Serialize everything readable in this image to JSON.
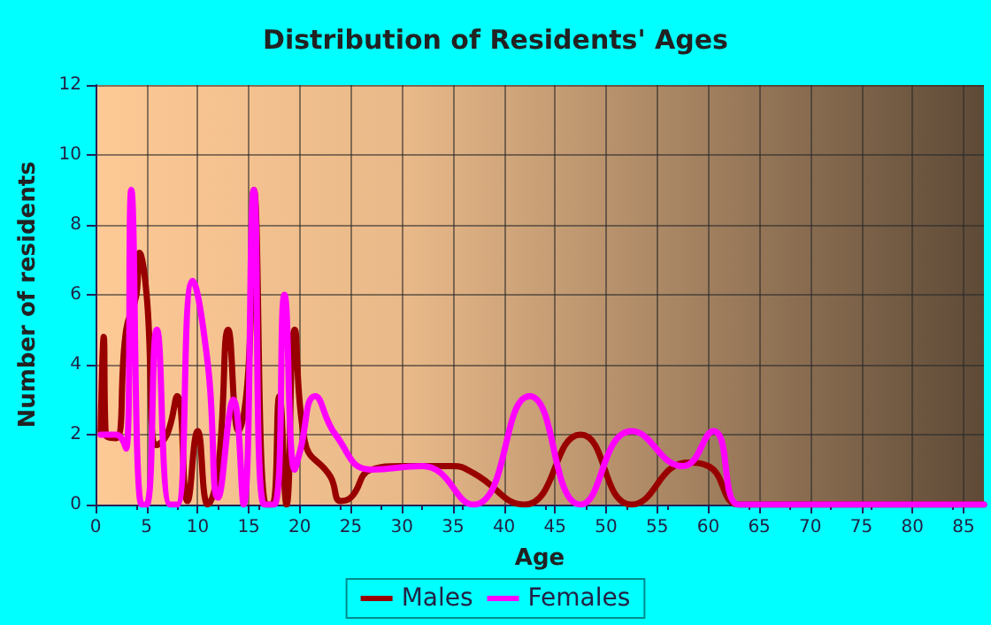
{
  "chart_data": {
    "type": "line",
    "title": "Distribution of Residents' Ages",
    "xlabel": "Age",
    "ylabel": "Number of residents",
    "xlim": [
      0,
      87
    ],
    "xticks": [
      0,
      5,
      10,
      15,
      20,
      25,
      30,
      35,
      40,
      45,
      50,
      55,
      60,
      65,
      70,
      75,
      80,
      85
    ],
    "ylim": [
      0,
      12
    ],
    "yticks": [
      0,
      2,
      4,
      6,
      8,
      10,
      12
    ],
    "grid": true,
    "legend": "bottom",
    "marker": "none",
    "line_style": "solid",
    "series": [
      {
        "name": "Males",
        "color": "#990000",
        "x": [
          0.5,
          0.8,
          1,
          2,
          3,
          4,
          4.3,
          5,
          6,
          7,
          8,
          9,
          10,
          11,
          12,
          13,
          14,
          15,
          15.5,
          16.7,
          17.3,
          18,
          18.7,
          19.5,
          20.5,
          23,
          24,
          25,
          27,
          30,
          35,
          37,
          42,
          47.5,
          52.5,
          58,
          60,
          63,
          65,
          70,
          75,
          80,
          87
        ],
        "values": [
          2.1,
          4.8,
          2,
          1.9,
          5,
          6,
          7.2,
          6,
          1.7,
          2,
          3.1,
          0.1,
          2.1,
          0,
          1,
          5,
          2.1,
          4,
          9,
          0,
          0,
          3.1,
          0,
          5,
          1.8,
          0.8,
          0.1,
          0.2,
          1,
          1.1,
          1.1,
          0.9,
          0,
          2,
          0,
          1.2,
          1.1,
          0,
          0,
          0,
          0,
          0,
          0
        ]
      },
      {
        "name": "Females",
        "color": "#ff00ff",
        "x": [
          0.5,
          2,
          3,
          3.5,
          4.5,
          5,
          6,
          7.3,
          8,
          9.5,
          11,
          12,
          13.5,
          14.5,
          15.5,
          16.5,
          17.5,
          18.5,
          19.5,
          20,
          21.5,
          23.5,
          27,
          32,
          37,
          42.5,
          47.5,
          52.5,
          57.5,
          60.5,
          63,
          65,
          70,
          75,
          80,
          87
        ],
        "values": [
          2,
          2,
          1.6,
          9,
          0,
          0,
          5,
          0,
          0,
          6.4,
          4,
          0.2,
          3,
          0,
          9,
          0,
          0,
          6,
          1,
          1.5,
          3.1,
          2,
          1,
          1.1,
          0,
          3.1,
          0,
          2.1,
          1.1,
          2.1,
          0,
          0,
          0,
          0,
          0,
          0
        ]
      }
    ]
  }
}
